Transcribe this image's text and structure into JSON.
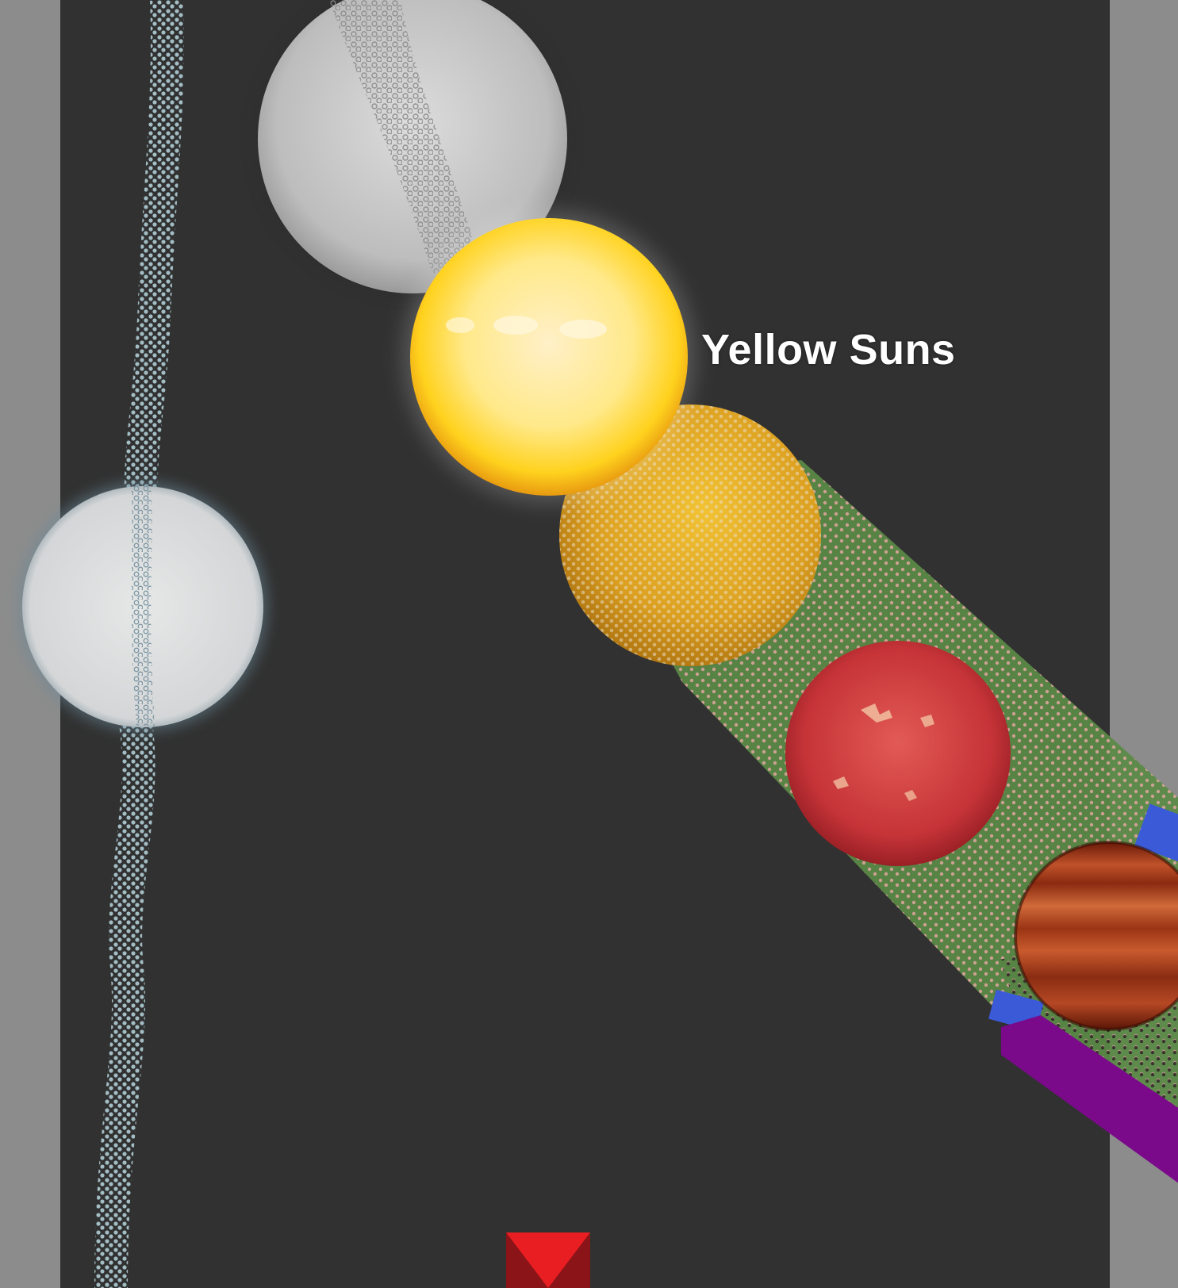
{
  "scene": {
    "label": "Yellow Suns",
    "colors": {
      "background": "#313131",
      "side_panels": "#8c8c8c",
      "yellow_sun": "#ffe45a",
      "orange_star": "#e5a520",
      "red_star": "#c8343a",
      "brown_dwarf": "#a8401c",
      "white_dwarf": "#d8dadb",
      "giant": "#bdbdbd",
      "band_green": "#5a8a45",
      "band_blue": "#3a5ad8",
      "band_purple": "#7a0a8a",
      "marker": "#e02020"
    },
    "bodies": [
      {
        "name": "white-giant-star",
        "color": "giant"
      },
      {
        "name": "yellow-sun-star",
        "color": "yellow_sun"
      },
      {
        "name": "orange-star",
        "color": "orange_star"
      },
      {
        "name": "red-dwarf-star",
        "color": "red_star"
      },
      {
        "name": "brown-dwarf-planet",
        "color": "brown_dwarf"
      },
      {
        "name": "white-dwarf-star",
        "color": "white_dwarf"
      }
    ],
    "marker_icon": "triangle-marker-icon"
  }
}
